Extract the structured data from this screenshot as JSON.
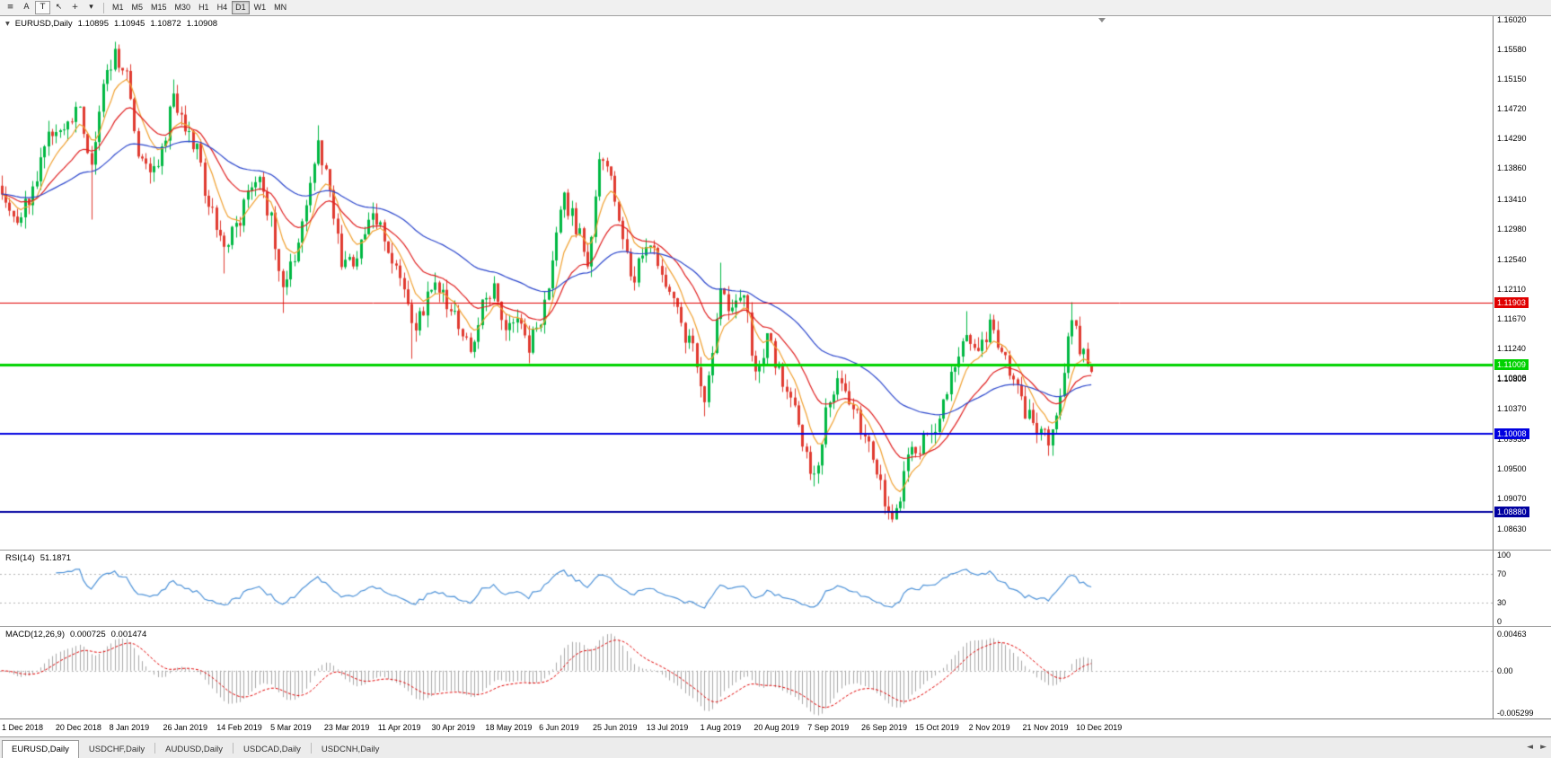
{
  "toolbar": {
    "icons": [
      {
        "name": "menu-icon",
        "glyph": "≡"
      },
      {
        "name": "text-tool-a",
        "glyph": "A"
      },
      {
        "name": "text-label-tool-t",
        "glyph": "T",
        "boxed": true
      },
      {
        "name": "cursor-tool",
        "glyph": "↖"
      },
      {
        "name": "crosshair-tool",
        "glyph": "+"
      },
      {
        "name": "indicators-dropdown",
        "glyph": "▾"
      }
    ],
    "timeframes": [
      "M1",
      "M5",
      "M15",
      "M30",
      "H1",
      "H4",
      "D1",
      "W1",
      "MN"
    ],
    "active_timeframe": "D1"
  },
  "chart": {
    "symbol_period": "EURUSD,Daily",
    "context_icon": "▾",
    "ohlc": {
      "open": "1.10895",
      "high": "1.10945",
      "low": "1.10872",
      "close": "1.10908"
    },
    "current_price": "1.10908",
    "price_axis": [
      "1.16020",
      "1.15580",
      "1.15150",
      "1.14720",
      "1.14290",
      "1.13860",
      "1.13410",
      "1.12980",
      "1.12540",
      "1.12110",
      "1.11670",
      "1.11240",
      "1.10800",
      "1.10370",
      "1.09930",
      "1.09500",
      "1.09070",
      "1.08630"
    ],
    "hlines": [
      {
        "value": 1.11903,
        "label": "1.11903",
        "color": "#e00000",
        "width": 1,
        "name": "resistance-line"
      },
      {
        "value": 1.11009,
        "label": "1.11009",
        "color": "#00d200",
        "width": 3,
        "name": "green-support-line"
      },
      {
        "value": 1.10008,
        "label": "1.10008",
        "color": "#0000e0",
        "width": 2,
        "name": "blue-support-line"
      },
      {
        "value": 1.0888,
        "label": "1.08880",
        "color": "#0000a0",
        "width": 2,
        "name": "lower-support-line"
      }
    ],
    "date_axis": [
      "1 Dec 2018",
      "20 Dec 2018",
      "8 Jan 2019",
      "26 Jan 2019",
      "14 Feb 2019",
      "5 Mar 2019",
      "23 Mar 2019",
      "11 Apr 2019",
      "30 Apr 2019",
      "18 May 2019",
      "6 Jun 2019",
      "25 Jun 2019",
      "13 Jul 2019",
      "1 Aug 2019",
      "20 Aug 2019",
      "7 Sep 2019",
      "26 Sep 2019",
      "15 Oct 2019",
      "2 Nov 2019",
      "21 Nov 2019",
      "10 Dec 2019"
    ]
  },
  "rsi_panel": {
    "label": "RSI(14)",
    "value": "51.1871",
    "levels": [
      {
        "label": "100",
        "value": 100
      },
      {
        "label": "70",
        "value": 70
      },
      {
        "label": "30",
        "value": 30
      },
      {
        "label": "0",
        "value": 0
      }
    ]
  },
  "macd_panel": {
    "label": "MACD(12,26,9)",
    "value_main": "0.000725",
    "value_signal": "0.001474",
    "levels": [
      {
        "label": "0.00463",
        "value": 0.00463
      },
      {
        "label": "0.00",
        "value": 0
      },
      {
        "label": "-0.005299",
        "value": -0.005299
      }
    ]
  },
  "tabs": {
    "items": [
      {
        "label": "EURUSD,Daily",
        "active": true
      },
      {
        "label": "USDCHF,Daily",
        "active": false
      },
      {
        "label": "AUDUSD,Daily",
        "active": false
      },
      {
        "label": "USDCAD,Daily",
        "active": false
      },
      {
        "label": "USDCNH,Daily",
        "active": false
      }
    ],
    "scroll_left_icon": "◄",
    "scroll_right_icon": "►"
  },
  "chart_data": {
    "type": "candlestick",
    "symbol": "EURUSD",
    "timeframe": "Daily",
    "title": "EURUSD,Daily",
    "n_candles": 280,
    "seed": 20191220,
    "noise": 0.0028,
    "wick": 0.0016,
    "last_close": 1.10908,
    "label_step": 13.75,
    "price_scale": {
      "max": 1.1606,
      "min": 1.08331
    },
    "ylim": [
      1.08331,
      1.1606
    ],
    "macd_scale": {
      "max": 0.0055,
      "min": -0.006
    },
    "anchors": [
      [
        0,
        1.1358
      ],
      [
        4,
        1.1318
      ],
      [
        8,
        1.1352
      ],
      [
        12,
        1.1432
      ],
      [
        16,
        1.1448
      ],
      [
        20,
        1.1468
      ],
      [
        23,
        1.1398
      ],
      [
        26,
        1.1495
      ],
      [
        29,
        1.1552
      ],
      [
        32,
        1.1518
      ],
      [
        35,
        1.1415
      ],
      [
        38,
        1.1372
      ],
      [
        41,
        1.1412
      ],
      [
        44,
        1.1492
      ],
      [
        47,
        1.1452
      ],
      [
        50,
        1.1408
      ],
      [
        53,
        1.1332
      ],
      [
        57,
        1.1265
      ],
      [
        60,
        1.1302
      ],
      [
        63,
        1.1342
      ],
      [
        66,
        1.1365
      ],
      [
        69,
        1.1312
      ],
      [
        72,
        1.1218
      ],
      [
        75,
        1.1252
      ],
      [
        78,
        1.133
      ],
      [
        81,
        1.1418
      ],
      [
        84,
        1.1352
      ],
      [
        87,
        1.1255
      ],
      [
        90,
        1.1242
      ],
      [
        93,
        1.1302
      ],
      [
        96,
        1.1312
      ],
      [
        99,
        1.1262
      ],
      [
        102,
        1.1232
      ],
      [
        105,
        1.1152
      ],
      [
        108,
        1.1182
      ],
      [
        111,
        1.1222
      ],
      [
        114,
        1.1192
      ],
      [
        117,
        1.1162
      ],
      [
        120,
        1.1122
      ],
      [
        123,
        1.1182
      ],
      [
        126,
        1.1212
      ],
      [
        129,
        1.1162
      ],
      [
        132,
        1.1172
      ],
      [
        135,
        1.1132
      ],
      [
        138,
        1.1172
      ],
      [
        141,
        1.1252
      ],
      [
        144,
        1.1342
      ],
      [
        147,
        1.1302
      ],
      [
        150,
        1.1252
      ],
      [
        153,
        1.1392
      ],
      [
        156,
        1.1372
      ],
      [
        159,
        1.1282
      ],
      [
        162,
        1.1222
      ],
      [
        165,
        1.1282
      ],
      [
        168,
        1.1252
      ],
      [
        171,
        1.1212
      ],
      [
        174,
        1.1152
      ],
      [
        177,
        1.1122
      ],
      [
        180,
        1.1045
      ],
      [
        182,
        1.1112
      ],
      [
        184,
        1.1202
      ],
      [
        187,
        1.1172
      ],
      [
        190,
        1.1212
      ],
      [
        193,
        1.1082
      ],
      [
        196,
        1.1142
      ],
      [
        199,
        1.1092
      ],
      [
        202,
        1.1062
      ],
      [
        205,
        1.0992
      ],
      [
        208,
        1.0932
      ],
      [
        211,
        1.1032
      ],
      [
        214,
        1.1072
      ],
      [
        217,
        1.1042
      ],
      [
        220,
        1.1012
      ],
      [
        223,
        1.0962
      ],
      [
        226,
        1.0902
      ],
      [
        229,
        1.0882
      ],
      [
        232,
        1.0962
      ],
      [
        235,
        1.0982
      ],
      [
        238,
        1.1002
      ],
      [
        241,
        1.1042
      ],
      [
        244,
        1.1102
      ],
      [
        247,
        1.1152
      ],
      [
        250,
        1.1112
      ],
      [
        253,
        1.1162
      ],
      [
        256,
        1.1122
      ],
      [
        259,
        1.1072
      ],
      [
        262,
        1.1032
      ],
      [
        265,
        1.1012
      ],
      [
        268,
        1.0992
      ],
      [
        271,
        1.1062
      ],
      [
        273,
        1.1132
      ],
      [
        274,
        1.1178
      ],
      [
        276,
        1.1122
      ],
      [
        278,
        1.1102
      ],
      [
        279,
        1.10908
      ]
    ],
    "wick_overrides": [
      {
        "i": 23,
        "low": 1.1312
      },
      {
        "i": 29,
        "high": 1.157
      },
      {
        "i": 44,
        "high": 1.1515
      },
      {
        "i": 57,
        "low": 1.1234
      },
      {
        "i": 72,
        "low": 1.1176
      },
      {
        "i": 81,
        "high": 1.1448
      },
      {
        "i": 105,
        "low": 1.111
      },
      {
        "i": 180,
        "low": 1.1027
      },
      {
        "i": 184,
        "high": 1.125
      },
      {
        "i": 208,
        "low": 1.0926
      },
      {
        "i": 229,
        "low": 1.0879
      },
      {
        "i": 247,
        "high": 1.1179
      },
      {
        "i": 253,
        "high": 1.1175
      },
      {
        "i": 274,
        "high": 1.1192
      }
    ],
    "ma": [
      {
        "period": 8,
        "color": "#f0a030",
        "name": "fast-ma-orange"
      },
      {
        "period": 21,
        "color": "#e02020",
        "name": "mid-ma-red"
      },
      {
        "period": 55,
        "color": "#2b46cc",
        "name": "slow-ma-blue"
      }
    ],
    "rsi_period": 14,
    "macd": {
      "fast": 12,
      "slow": 26,
      "signal": 9
    },
    "colors": {
      "bull": "#00b843",
      "bear": "#e03a30",
      "rsi": "#4f93d8",
      "macd_hist": "#a8a8a8",
      "macd_signal": "#e00000",
      "grid_dotted": "#b4b4b4",
      "background": "#ffffff"
    }
  }
}
